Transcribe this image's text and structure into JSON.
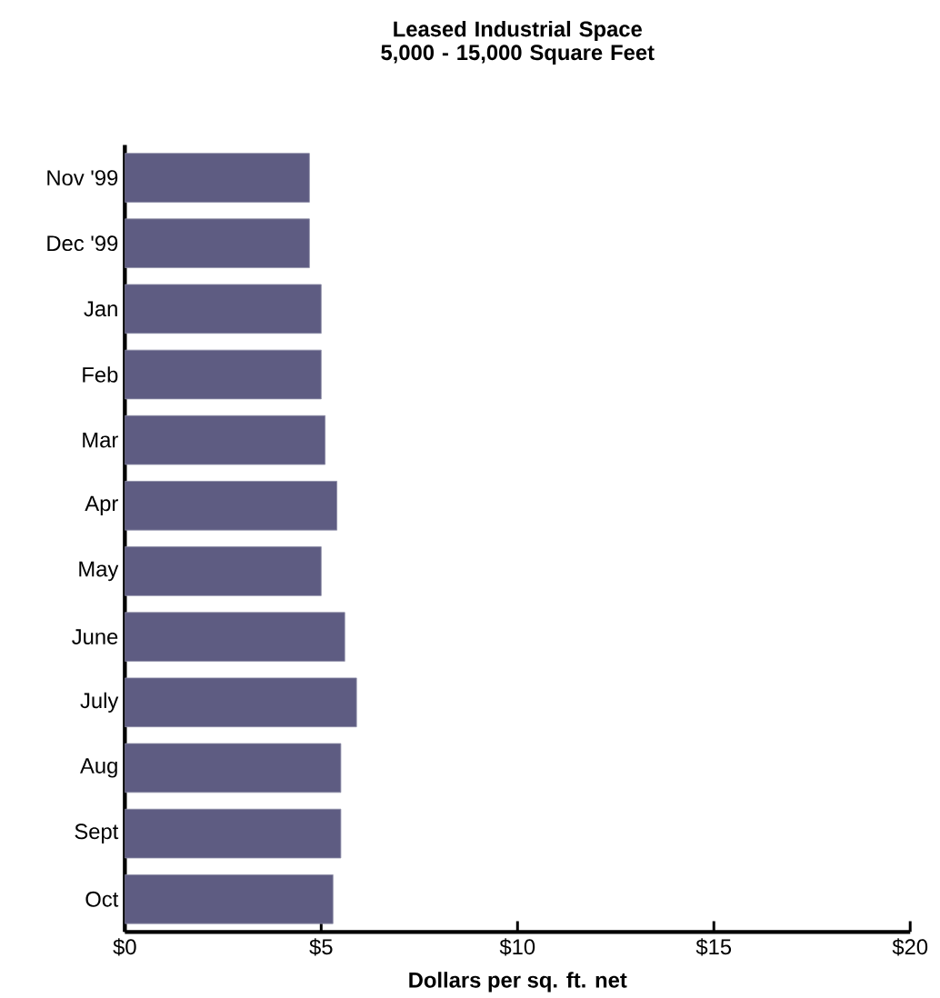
{
  "chart_data": {
    "type": "bar",
    "orientation": "horizontal",
    "title": "Leased Industrial Space\n5,000 - 15,000 Square Feet",
    "xlabel": "Dollars per sq. ft. net",
    "categories": [
      "Nov '99",
      "Dec '99",
      "Jan",
      "Feb",
      "Mar",
      "Apr",
      "May",
      "June",
      "July",
      "Aug",
      "Sept",
      "Oct"
    ],
    "values": [
      4.7,
      4.7,
      5.0,
      5.0,
      5.1,
      5.4,
      5.0,
      5.6,
      5.9,
      5.5,
      5.5,
      5.3
    ],
    "color": "#5e5c82",
    "xlim": [
      0,
      20
    ],
    "xticks": [
      {
        "value": 0,
        "label": "$0"
      },
      {
        "value": 5,
        "label": "$5"
      },
      {
        "value": 10,
        "label": "$10"
      },
      {
        "value": 15,
        "label": "$15"
      },
      {
        "value": 20,
        "label": "$20"
      }
    ]
  }
}
